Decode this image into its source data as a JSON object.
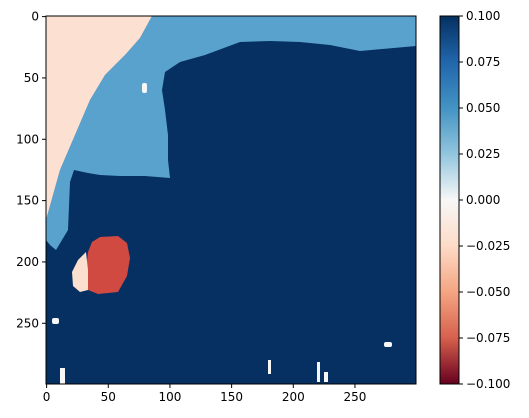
{
  "chart_data": {
    "type": "heatmap",
    "x_range": [
      0,
      299
    ],
    "y_range": [
      299,
      0
    ],
    "x_ticks": [
      0,
      50,
      100,
      150,
      200,
      250
    ],
    "y_ticks": [
      0,
      50,
      100,
      150,
      200,
      250
    ],
    "colormap": "RdBu",
    "colorbar": {
      "range": [
        -0.1,
        0.1
      ],
      "ticks": [
        "0.100",
        "0.075",
        "0.050",
        "0.025",
        "0.000",
        "-0.025",
        "-0.050",
        "-0.075",
        "-0.100"
      ]
    },
    "regions": [
      {
        "value": 0.1,
        "color": "#053061",
        "description": "background"
      },
      {
        "value": 0.06,
        "color": "#5aa2ce"
      },
      {
        "value": -0.02,
        "color": "#fce1d3"
      },
      {
        "value": -0.07,
        "color": "#d04a41"
      },
      {
        "value": 0.0,
        "color": "#f7f7f7"
      }
    ],
    "grid": false
  }
}
